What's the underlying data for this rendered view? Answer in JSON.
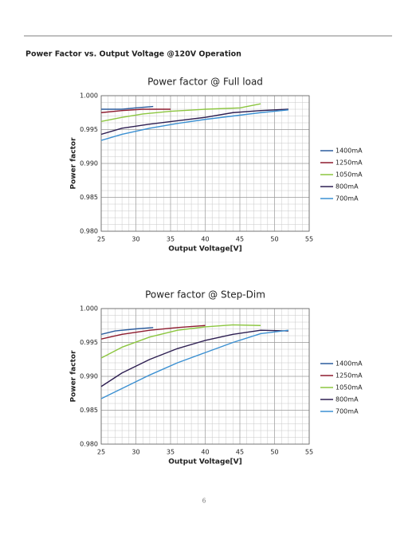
{
  "header": {
    "title": "Power Factor vs. Output Voltage @120V Operation"
  },
  "chart_data": [
    {
      "type": "line",
      "title": "Power factor @ Full load",
      "x_label": "Output Voltage[V]",
      "y_label": "Power factor",
      "xlim": [
        25,
        55
      ],
      "xticks": [
        25,
        30,
        35,
        40,
        45,
        50,
        55
      ],
      "ylim": [
        0.98,
        1
      ],
      "yticks": [
        {
          "value": 0.98,
          "label": "0.980"
        },
        {
          "value": 0.985,
          "label": "0.985"
        },
        {
          "value": 0.99,
          "label": "0.990"
        },
        {
          "value": 0.995,
          "label": "0.995"
        },
        {
          "value": 1,
          "label": "1.000"
        }
      ],
      "grid": true,
      "legend": "right",
      "series": [
        {
          "name": "1400mA",
          "color": "#2b5c9e",
          "x": [
            25,
            28,
            30,
            32.5
          ],
          "values": [
            0.998,
            0.998,
            0.9982,
            0.9984
          ]
        },
        {
          "name": "1250mA",
          "color": "#8e1b2e",
          "x": [
            25,
            28,
            31,
            35
          ],
          "values": [
            0.9975,
            0.9978,
            0.998,
            0.998
          ]
        },
        {
          "name": "1050mA",
          "color": "#8cc63f",
          "x": [
            25,
            28,
            31,
            35,
            40,
            45,
            48
          ],
          "values": [
            0.9962,
            0.9968,
            0.9973,
            0.9977,
            0.998,
            0.9982,
            0.9988
          ]
        },
        {
          "name": "800mA",
          "color": "#2e1f52",
          "x": [
            25,
            28,
            32,
            36,
            40,
            44,
            48,
            52
          ],
          "values": [
            0.9943,
            0.9952,
            0.9958,
            0.9963,
            0.9968,
            0.9975,
            0.9978,
            0.998
          ]
        },
        {
          "name": "700mA",
          "color": "#3b90d2",
          "x": [
            25,
            28,
            32,
            36,
            40,
            44,
            48,
            52
          ],
          "values": [
            0.9934,
            0.9943,
            0.9952,
            0.9959,
            0.9965,
            0.997,
            0.9975,
            0.9979
          ]
        }
      ]
    },
    {
      "type": "line",
      "title": "Power factor @ Step-Dim",
      "x_label": "Output Voltage[V]",
      "y_label": "Power factor",
      "xlim": [
        25,
        55
      ],
      "xticks": [
        25,
        30,
        35,
        40,
        45,
        50,
        55
      ],
      "ylim": [
        0.98,
        1
      ],
      "yticks": [
        {
          "value": 0.98,
          "label": "0.980"
        },
        {
          "value": 0.985,
          "label": "0.985"
        },
        {
          "value": 0.99,
          "label": "0.990"
        },
        {
          "value": 0.995,
          "label": "0.995"
        },
        {
          "value": 1,
          "label": "1.000"
        }
      ],
      "grid": true,
      "legend": "right",
      "series": [
        {
          "name": "1400mA",
          "color": "#2b5c9e",
          "x": [
            25,
            27,
            30,
            32.5
          ],
          "values": [
            0.9962,
            0.9967,
            0.997,
            0.9972
          ]
        },
        {
          "name": "1250mA",
          "color": "#8e1b2e",
          "x": [
            25,
            28,
            32,
            36,
            40
          ],
          "values": [
            0.9955,
            0.9962,
            0.9968,
            0.9972,
            0.9975
          ]
        },
        {
          "name": "1050mA",
          "color": "#8cc63f",
          "x": [
            25,
            28,
            32,
            36,
            40,
            44,
            48
          ],
          "values": [
            0.9927,
            0.9943,
            0.9958,
            0.9968,
            0.9973,
            0.9976,
            0.9975
          ]
        },
        {
          "name": "800mA",
          "color": "#2e1f52",
          "x": [
            25,
            28,
            32,
            36,
            40,
            44,
            48,
            52
          ],
          "values": [
            0.9885,
            0.9905,
            0.9925,
            0.9941,
            0.9953,
            0.9962,
            0.9968,
            0.9967
          ]
        },
        {
          "name": "700mA",
          "color": "#3b90d2",
          "x": [
            25,
            28,
            32,
            36,
            40,
            44,
            48,
            52
          ],
          "values": [
            0.9867,
            0.9882,
            0.9902,
            0.992,
            0.9935,
            0.995,
            0.9963,
            0.9968
          ]
        }
      ]
    }
  ],
  "page_number": "6"
}
